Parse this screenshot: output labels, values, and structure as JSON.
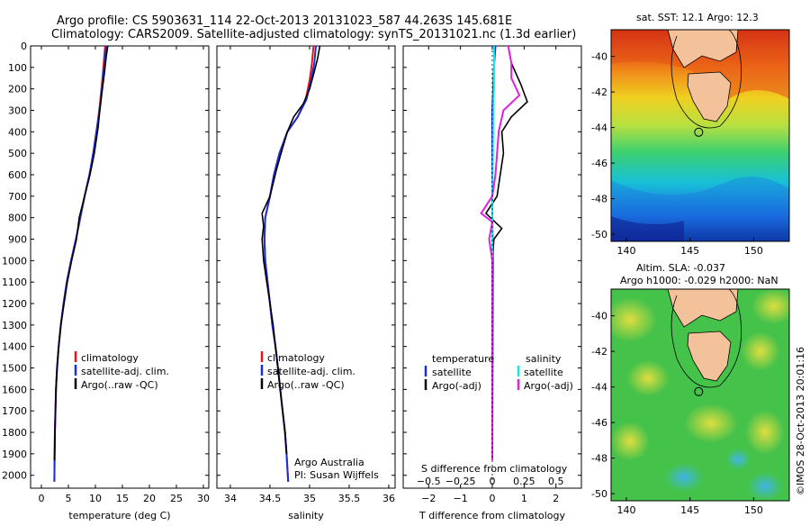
{
  "header": {
    "line1": "Argo profile: CS 5903631_114 22-Oct-2013 20131023_587 44.263S 145.681E",
    "line2": "Climatology: CARS2009. Satellite-adjusted climatology: synTS_20131021.nc (1.3d earlier)"
  },
  "colors": {
    "climatology": "#e8141c",
    "satellite": "#1a2fd8",
    "argo": "#000000",
    "salinity_satellite": "#18e8e8",
    "salinity_argo": "#e020e0",
    "land": "#f4c29a"
  },
  "depth_axis": {
    "ticks": [
      0,
      100,
      200,
      300,
      400,
      500,
      600,
      700,
      800,
      900,
      1000,
      1100,
      1200,
      1300,
      1400,
      1500,
      1600,
      1700,
      1800,
      1900,
      2000
    ],
    "range": [
      0,
      2060
    ]
  },
  "chart_data": [
    {
      "type": "line",
      "id": "temperature",
      "xlabel": "temperature (deg C)",
      "xticks": [
        0,
        5,
        10,
        15,
        20,
        25,
        30
      ],
      "xlim": [
        -2,
        31
      ],
      "legend": [
        "climatology",
        "satellite-adj. clim.",
        "Argo(..raw -QC)"
      ],
      "series": [
        {
          "name": "climatology",
          "key": "climatology",
          "points": [
            [
              11.8,
              0
            ],
            [
              11.6,
              60
            ],
            [
              11.3,
              150
            ],
            [
              10.8,
              280
            ],
            [
              10.3,
              380
            ],
            [
              9.6,
              500
            ],
            [
              8.9,
              600
            ],
            [
              8.0,
              700
            ],
            [
              7.2,
              800
            ],
            [
              6.4,
              900
            ],
            [
              5.5,
              1000
            ],
            [
              4.7,
              1100
            ],
            [
              4.1,
              1200
            ],
            [
              3.6,
              1300
            ],
            [
              3.2,
              1400
            ],
            [
              2.9,
              1500
            ],
            [
              2.7,
              1600
            ],
            [
              2.6,
              1700
            ],
            [
              2.5,
              1800
            ],
            [
              2.45,
              1900
            ],
            [
              2.4,
              2030
            ]
          ]
        },
        {
          "name": "satellite-adj. clim.",
          "key": "satellite",
          "points": [
            [
              12.0,
              0
            ],
            [
              11.8,
              60
            ],
            [
              11.4,
              150
            ],
            [
              10.9,
              280
            ],
            [
              10.3,
              380
            ],
            [
              9.6,
              500
            ],
            [
              8.9,
              600
            ],
            [
              8.0,
              700
            ],
            [
              7.2,
              800
            ],
            [
              6.4,
              900
            ],
            [
              5.5,
              1000
            ],
            [
              4.7,
              1100
            ],
            [
              4.1,
              1200
            ],
            [
              3.6,
              1300
            ],
            [
              3.2,
              1400
            ],
            [
              2.9,
              1500
            ],
            [
              2.7,
              1600
            ],
            [
              2.6,
              1700
            ],
            [
              2.5,
              1800
            ],
            [
              2.45,
              1900
            ],
            [
              2.4,
              2030
            ]
          ]
        },
        {
          "name": "Argo(..raw -QC)",
          "key": "argo",
          "points": [
            [
              12.3,
              0
            ],
            [
              12.0,
              50
            ],
            [
              11.7,
              120
            ],
            [
              11.3,
              200
            ],
            [
              10.9,
              280
            ],
            [
              10.5,
              380
            ],
            [
              9.8,
              500
            ],
            [
              9.0,
              600
            ],
            [
              8.0,
              700
            ],
            [
              7.0,
              800
            ],
            [
              6.5,
              900
            ],
            [
              5.6,
              1000
            ],
            [
              4.8,
              1100
            ],
            [
              4.2,
              1200
            ],
            [
              3.6,
              1300
            ],
            [
              3.2,
              1400
            ],
            [
              2.9,
              1500
            ],
            [
              2.7,
              1600
            ],
            [
              2.6,
              1700
            ],
            [
              2.5,
              1800
            ],
            [
              2.45,
              1900
            ],
            [
              2.4,
              1930
            ]
          ]
        }
      ]
    },
    {
      "type": "line",
      "id": "salinity",
      "xlabel": "salinity",
      "xticks": [
        34,
        34.5,
        35,
        35.5,
        36
      ],
      "xticklabels": [
        "34",
        "34.5",
        "35",
        "35.5",
        "36"
      ],
      "xlim": [
        33.83,
        36.08
      ],
      "legend": [
        "climatology",
        "satellite-adj. clim.",
        "Argo(..raw -QC)"
      ],
      "annotation": [
        "Argo Australia",
        "PI: Susan Wijffels"
      ],
      "series": [
        {
          "name": "climatology",
          "key": "climatology",
          "points": [
            [
              35.05,
              0
            ],
            [
              35.03,
              80
            ],
            [
              35.0,
              160
            ],
            [
              34.95,
              250
            ],
            [
              34.85,
              330
            ],
            [
              34.72,
              400
            ],
            [
              34.62,
              500
            ],
            [
              34.55,
              600
            ],
            [
              34.5,
              700
            ],
            [
              34.44,
              800
            ],
            [
              34.43,
              900
            ],
            [
              34.44,
              1000
            ],
            [
              34.47,
              1100
            ],
            [
              34.5,
              1200
            ],
            [
              34.53,
              1300
            ],
            [
              34.57,
              1400
            ],
            [
              34.6,
              1500
            ],
            [
              34.63,
              1600
            ],
            [
              34.66,
              1700
            ],
            [
              34.69,
              1800
            ],
            [
              34.71,
              1900
            ],
            [
              34.73,
              2030
            ]
          ]
        },
        {
          "name": "satellite-adj. clim.",
          "key": "satellite",
          "points": [
            [
              35.08,
              0
            ],
            [
              35.06,
              80
            ],
            [
              35.02,
              160
            ],
            [
              34.96,
              250
            ],
            [
              34.85,
              330
            ],
            [
              34.72,
              400
            ],
            [
              34.62,
              500
            ],
            [
              34.55,
              600
            ],
            [
              34.5,
              700
            ],
            [
              34.44,
              800
            ],
            [
              34.43,
              900
            ],
            [
              34.44,
              1000
            ],
            [
              34.47,
              1100
            ],
            [
              34.5,
              1200
            ],
            [
              34.53,
              1300
            ],
            [
              34.57,
              1400
            ],
            [
              34.6,
              1500
            ],
            [
              34.63,
              1600
            ],
            [
              34.66,
              1700
            ],
            [
              34.69,
              1800
            ],
            [
              34.71,
              1900
            ],
            [
              34.73,
              2030
            ]
          ]
        },
        {
          "name": "Argo(..raw -QC)",
          "key": "argo",
          "points": [
            [
              35.13,
              0
            ],
            [
              35.1,
              60
            ],
            [
              35.06,
              120
            ],
            [
              35.0,
              200
            ],
            [
              34.92,
              270
            ],
            [
              34.8,
              330
            ],
            [
              34.72,
              400
            ],
            [
              34.64,
              500
            ],
            [
              34.58,
              580
            ],
            [
              34.5,
              700
            ],
            [
              34.4,
              780
            ],
            [
              34.42,
              840
            ],
            [
              34.4,
              900
            ],
            [
              34.42,
              1000
            ],
            [
              34.46,
              1100
            ],
            [
              34.5,
              1200
            ],
            [
              34.54,
              1300
            ],
            [
              34.57,
              1400
            ],
            [
              34.6,
              1500
            ],
            [
              34.63,
              1600
            ],
            [
              34.66,
              1700
            ],
            [
              34.69,
              1800
            ],
            [
              34.71,
              1900
            ]
          ]
        }
      ]
    },
    {
      "type": "line",
      "id": "difference",
      "xlabel": "T difference from climatology",
      "xlabel_top": "S difference from climatology",
      "xticks": [
        -2,
        -1,
        0,
        1,
        2
      ],
      "xticklabels": [
        "−2",
        "−1",
        "0",
        "1",
        "2"
      ],
      "xticks_top": [
        -0.5,
        -0.25,
        0,
        0.25,
        0.5
      ],
      "xticklabels_top": [
        "−0.5",
        "−0.25",
        "0",
        "0.25",
        "0.5"
      ],
      "xlim": [
        -2.8,
        2.8
      ],
      "legend_left_title": "temperature",
      "legend_right_title": "salinity",
      "legend_left": [
        "satellite",
        "Argo(-adj)"
      ],
      "legend_right": [
        "satellite",
        "Argo(-adj)"
      ],
      "series": [
        {
          "name": "satellite",
          "key": "satellite",
          "points": [
            [
              0.1,
              0
            ],
            [
              0.05,
              100
            ],
            [
              0.0,
              300
            ],
            [
              0.0,
              800
            ],
            [
              0.02,
              1000
            ],
            [
              0.0,
              1930
            ]
          ]
        },
        {
          "name": "Argo(-adj)",
          "key": "argo",
          "points": [
            [
              0.5,
              0
            ],
            [
              0.6,
              80
            ],
            [
              0.9,
              180
            ],
            [
              1.1,
              260
            ],
            [
              0.6,
              330
            ],
            [
              0.3,
              400
            ],
            [
              0.35,
              500
            ],
            [
              0.25,
              600
            ],
            [
              0.15,
              700
            ],
            [
              -0.2,
              780
            ],
            [
              0.3,
              850
            ],
            [
              0.05,
              900
            ],
            [
              0.0,
              1000
            ],
            [
              0.0,
              1200
            ],
            [
              0.0,
              1930
            ]
          ]
        },
        {
          "name": "satellite",
          "key": "salinity_satellite",
          "points": [
            [
              0.05,
              0
            ],
            [
              0.06,
              100
            ],
            [
              0.05,
              200
            ],
            [
              0.03,
              300
            ],
            [
              0.02,
              500
            ],
            [
              0.0,
              700
            ],
            [
              0.0,
              900
            ],
            [
              0.0,
              1930
            ]
          ]
        },
        {
          "name": "Argo(-adj)",
          "key": "salinity_argo",
          "points": [
            [
              0.5,
              0
            ],
            [
              0.6,
              80
            ],
            [
              0.6,
              150
            ],
            [
              0.85,
              230
            ],
            [
              0.35,
              300
            ],
            [
              0.2,
              400
            ],
            [
              0.15,
              500
            ],
            [
              0.1,
              600
            ],
            [
              0.0,
              700
            ],
            [
              -0.35,
              780
            ],
            [
              0.0,
              820
            ],
            [
              -0.1,
              900
            ],
            [
              0.0,
              1000
            ],
            [
              0.0,
              1930
            ]
          ]
        }
      ]
    }
  ],
  "maps": [
    {
      "id": "sst",
      "title": "sat. SST: 12.1 Argo: 12.3",
      "subtitle": "",
      "xticks": [
        140,
        145,
        150
      ],
      "yticks": [
        -40,
        -42,
        -44,
        -46,
        -48,
        -50
      ],
      "xlim": [
        138.8,
        152.8
      ],
      "ylim": [
        -50.4,
        -38.5
      ],
      "argo_lon": 145.681,
      "argo_lat": -44.263
    },
    {
      "id": "sla",
      "title": "Altim. SLA: -0.037",
      "subtitle": "Argo h1000: -0.029 h2000: NaN",
      "xticks": [
        140,
        145,
        150
      ],
      "yticks": [
        -40,
        -42,
        -44,
        -46,
        -48,
        -50
      ],
      "xlim": [
        138.8,
        152.8
      ],
      "ylim": [
        -50.4,
        -38.5
      ],
      "argo_lon": 145.681,
      "argo_lat": -44.263
    }
  ],
  "footer": {
    "credit": "©IMOS 28-Oct-2013 20:01:16"
  }
}
